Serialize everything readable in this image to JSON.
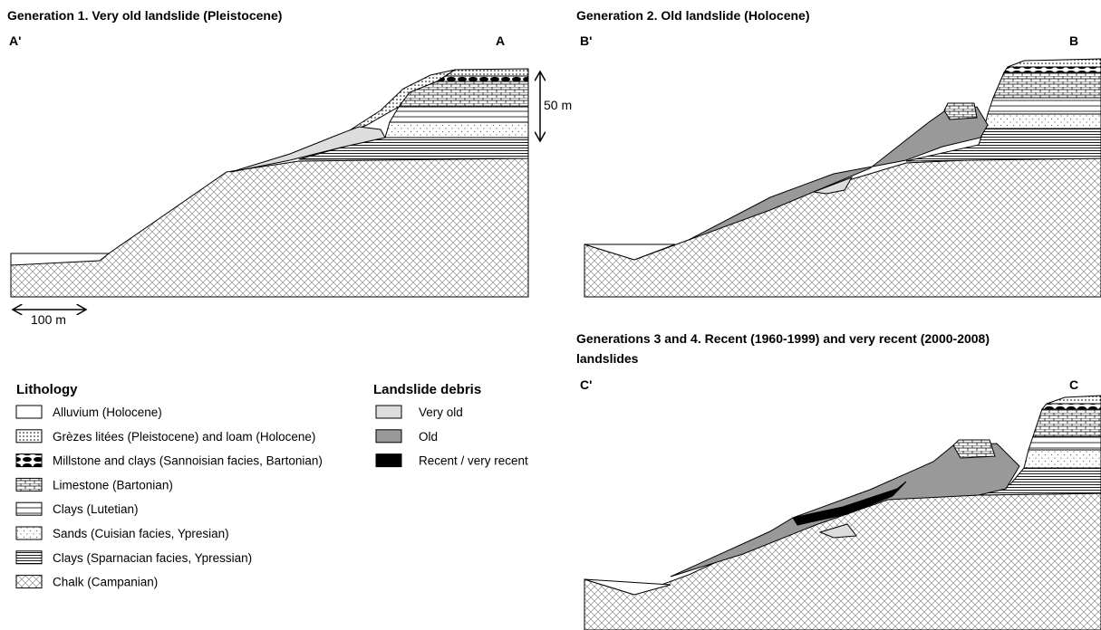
{
  "panels": [
    {
      "title": "Generation 1. Very old landslide (Pleistocene)",
      "left_label": "A'",
      "right_label": "A",
      "vertical_scale": "50 m",
      "horizontal_scale": "100 m"
    },
    {
      "title": "Generation 2. Old landslide (Holocene)",
      "left_label": "B'",
      "right_label": "B"
    },
    {
      "title_lines": [
        "Generations 3 and 4. Recent (1960-1999) and very recent (2000-2008)",
        "landslides"
      ],
      "left_label": "C'",
      "right_label": "C"
    }
  ],
  "legend": {
    "lithology": {
      "title": "Lithology",
      "items": [
        "Alluvium (Holocene)",
        "Grèzes litées (Pleistocene) and loam (Holocene)",
        "Millstone and clays (Sannoisian facies, Bartonian)",
        "Limestone (Bartonian)",
        "Clays (Lutetian)",
        "Sands (Cuisian facies, Ypresian)",
        "Clays (Sparnacian facies, Ypressian)",
        "Chalk (Campanian)"
      ]
    },
    "debris": {
      "title": "Landslide debris",
      "items": [
        "Very old",
        "Old",
        "Recent / very recent"
      ]
    }
  }
}
